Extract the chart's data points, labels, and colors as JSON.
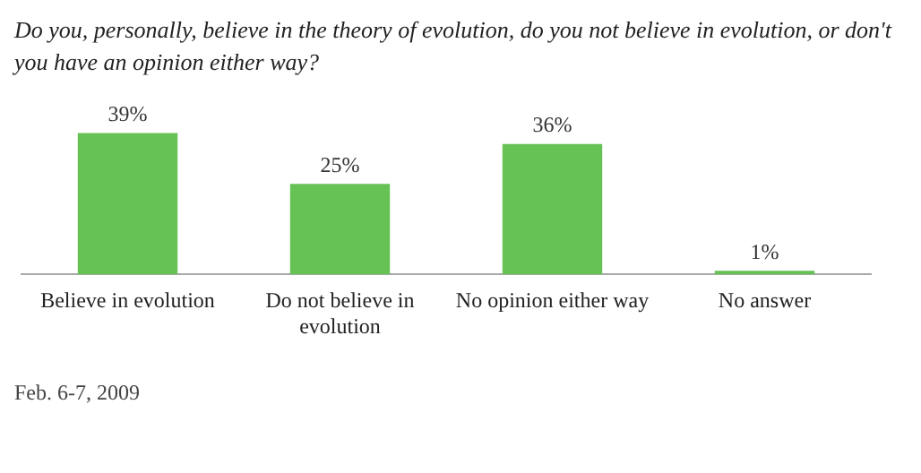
{
  "chart_data": {
    "type": "bar",
    "title": "Do you, personally, believe in the theory of evolution, do you not believe in evolution, or don't you have an opinion either way?",
    "categories": [
      "Believe in evolution",
      "Do not believe in evolution",
      "No opinion either way",
      "No answer"
    ],
    "values": [
      39,
      25,
      36,
      1
    ],
    "value_labels": [
      "39%",
      "25%",
      "36%",
      "1%"
    ],
    "color": "#66c254",
    "legend": false,
    "grid": false,
    "annotations": [
      "Feb. 6-7, 2009"
    ]
  }
}
